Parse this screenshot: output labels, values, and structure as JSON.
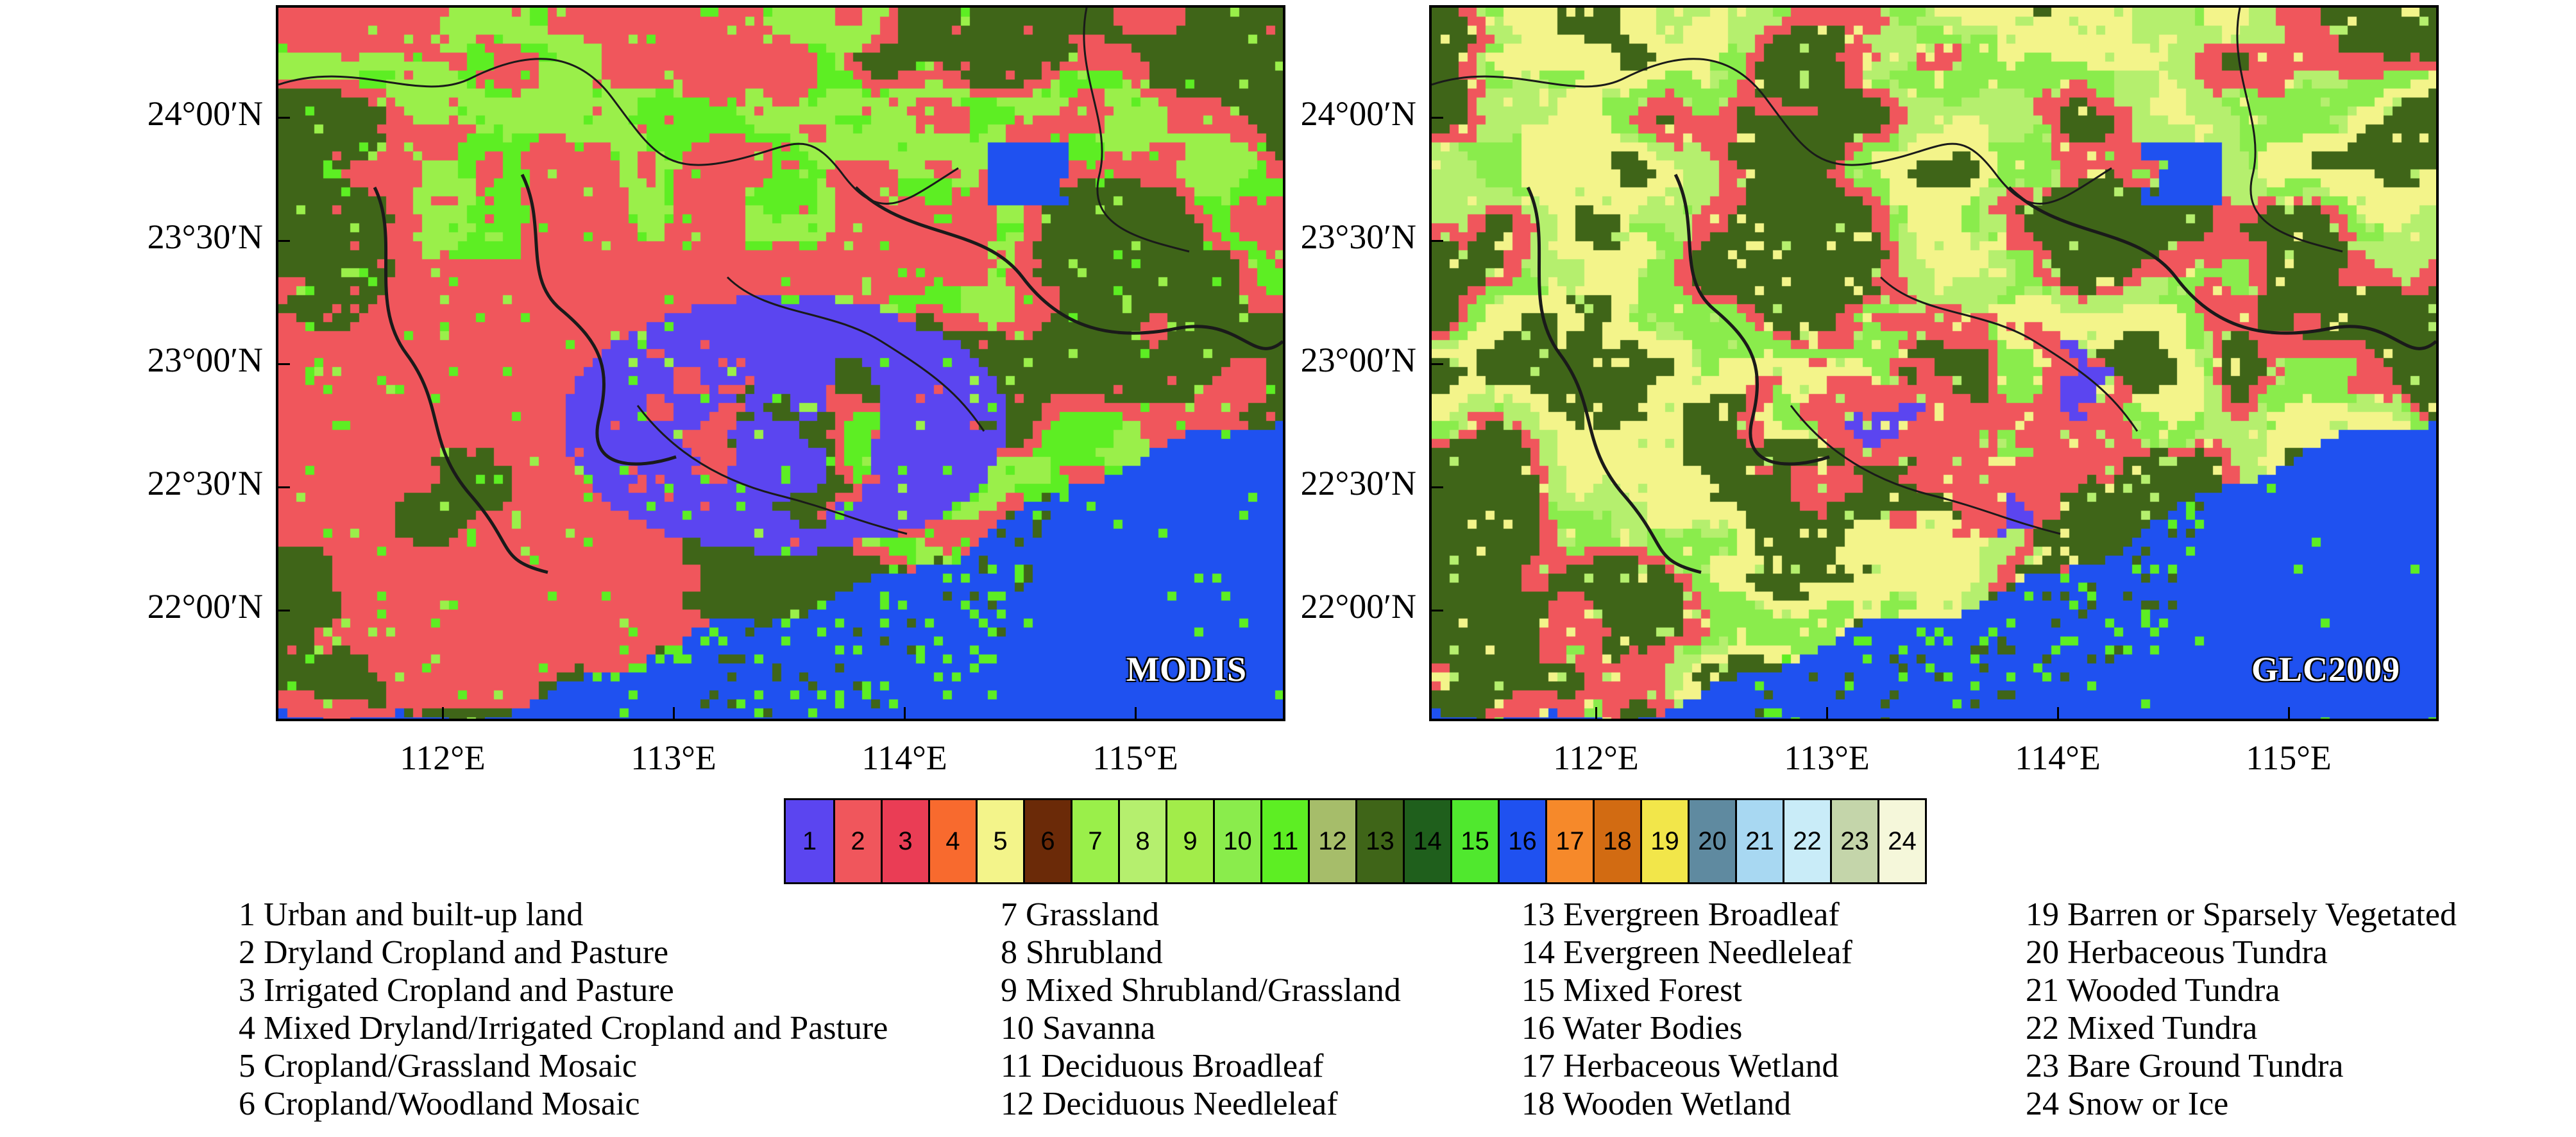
{
  "maps": [
    {
      "id": "left",
      "label": "MODIS"
    },
    {
      "id": "right",
      "label": "GLC2009"
    }
  ],
  "axes": {
    "latitude_labels": [
      "24°00′N",
      "23°30′N",
      "23°00′N",
      "22°30′N",
      "22°00′N"
    ],
    "longitude_labels": [
      "112°E",
      "113°E",
      "114°E",
      "115°E"
    ]
  },
  "colorbar": {
    "classes": [
      {
        "num": "1",
        "color": "#5b45f0"
      },
      {
        "num": "2",
        "color": "#f0565c"
      },
      {
        "num": "3",
        "color": "#ea3d55"
      },
      {
        "num": "4",
        "color": "#f86a2e"
      },
      {
        "num": "5",
        "color": "#f3f48a"
      },
      {
        "num": "6",
        "color": "#6b2a08"
      },
      {
        "num": "7",
        "color": "#9aef4a"
      },
      {
        "num": "8",
        "color": "#b5ef6e"
      },
      {
        "num": "9",
        "color": "#a2ec4a"
      },
      {
        "num": "10",
        "color": "#8aec4c"
      },
      {
        "num": "11",
        "color": "#5dee23"
      },
      {
        "num": "12",
        "color": "#a6bd6a"
      },
      {
        "num": "13",
        "color": "#3f6518"
      },
      {
        "num": "14",
        "color": "#1f5f1c"
      },
      {
        "num": "15",
        "color": "#50e82e"
      },
      {
        "num": "16",
        "color": "#1f51f0"
      },
      {
        "num": "17",
        "color": "#f6892a"
      },
      {
        "num": "18",
        "color": "#d26b12"
      },
      {
        "num": "19",
        "color": "#f2e64a"
      },
      {
        "num": "20",
        "color": "#5f8aa0"
      },
      {
        "num": "21",
        "color": "#a8d8f2"
      },
      {
        "num": "22",
        "color": "#c9ecf8"
      },
      {
        "num": "23",
        "color": "#c4d5aa"
      },
      {
        "num": "24",
        "color": "#f5f7da"
      }
    ]
  },
  "legend": {
    "col1": [
      "1 Urban and built-up land",
      "2 Dryland Cropland and Pasture",
      "3 Irrigated Cropland and Pasture",
      "4 Mixed Dryland/Irrigated Cropland and Pasture",
      "5 Cropland/Grassland Mosaic",
      "6 Cropland/Woodland Mosaic"
    ],
    "col2": [
      "7  Grassland",
      "8  Shrubland",
      "9  Mixed Shrubland/Grassland",
      "10  Savanna",
      "11  Deciduous Broadleaf",
      "12  Deciduous Needleleaf"
    ],
    "col3": [
      "13  Evergreen Broadleaf",
      "14  Evergreen Needleleaf",
      "15  Mixed Forest",
      "16  Water Bodies",
      "17  Herbaceous Wetland",
      "18  Wooden Wetland"
    ],
    "col4": [
      "19  Barren or Sparsely Vegetated",
      "20  Herbaceous Tundra",
      "21  Wooded Tundra",
      "22  Mixed Tundra",
      "23  Bare Ground Tundra",
      "24  Snow or Ice"
    ]
  }
}
